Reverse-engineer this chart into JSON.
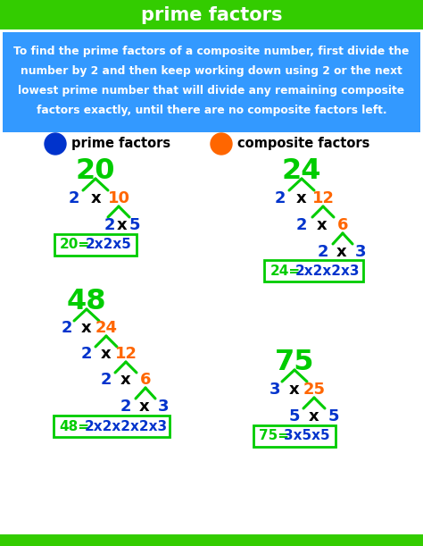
{
  "title": "prime factors",
  "title_bg": "#33cc00",
  "info_bg": "#3399ff",
  "bg_color": "#f0f0f0",
  "bottom_bar_color": "#33cc00",
  "GREEN": "#00cc00",
  "BLUE": "#0033cc",
  "ORANGE": "#ff6600",
  "WHITE": "#ffffff",
  "BLACK": "#000000",
  "info_text_lines": [
    "To find the prime factors of a composite number, first divide the",
    "number by 2 and then keep working down using 2 or the next",
    "lowest prime number that will divide any remaining composite",
    "factors exactly, until there are no composite factors left."
  ]
}
